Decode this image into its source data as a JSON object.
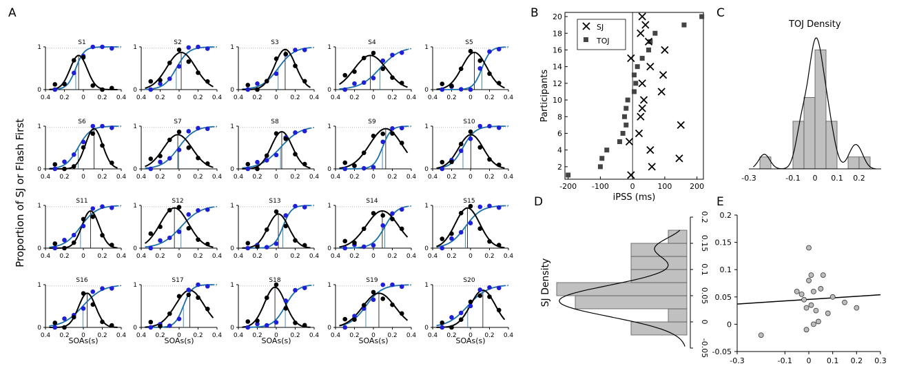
{
  "panels": {
    "A": "A",
    "B": "B",
    "C": "C",
    "D": "D",
    "E": "E"
  },
  "panel_a": {
    "ylabel": "Proportion of SJ or Flash First",
    "xlabel": "SOAs(s)",
    "xticks": [
      "0.4",
      "0.2",
      "0",
      "0.2",
      "0.4"
    ],
    "yticks": [
      "0",
      "0.5",
      "1"
    ],
    "subjects": [
      "S1",
      "S2",
      "S3",
      "S4",
      "S5",
      "S6",
      "S7",
      "S8",
      "S9",
      "S10",
      "S11",
      "S12",
      "S13",
      "S14",
      "S15",
      "S16",
      "S17",
      "S18",
      "S19",
      "S20"
    ]
  },
  "colors": {
    "sj": "#000000",
    "toj_points": "#1f1fd6",
    "toj_curve": "#1a6fa8",
    "bar_fill": "#c0c0c0"
  },
  "chart_data": [
    {
      "panel": "B",
      "type": "scatter",
      "xlabel": "iPSS (ms)",
      "ylabel": "Participants",
      "xlim": [
        -210,
        220
      ],
      "ylim": [
        0.5,
        20.5
      ],
      "xticks": [
        "-200",
        "-100",
        "0",
        "100",
        "200"
      ],
      "yticks": [
        "2",
        "4",
        "6",
        "8",
        "10",
        "12",
        "14",
        "16",
        "18",
        "20"
      ],
      "legend_position": "top-left",
      "series": [
        {
          "name": "SJ",
          "marker": "x",
          "x": [
            -5,
            60,
            145,
            55,
            -10,
            20,
            150,
            25,
            30,
            35,
            90,
            30,
            95,
            55,
            -5,
            100,
            50,
            25,
            40,
            30
          ],
          "y": [
            1,
            2,
            3,
            4,
            5,
            6,
            7,
            8,
            9,
            10,
            11,
            12,
            13,
            14,
            15,
            16,
            17,
            18,
            19,
            20
          ]
        },
        {
          "name": "TOJ",
          "marker": "square",
          "x": [
            -200,
            -100,
            -95,
            -80,
            -40,
            -30,
            -20,
            -25,
            -20,
            -15,
            5,
            10,
            5,
            15,
            30,
            50,
            55,
            70,
            160,
            215
          ],
          "y": [
            1,
            2,
            3,
            4,
            5,
            6,
            7,
            8,
            9,
            10,
            11,
            12,
            13,
            14,
            15,
            16,
            17,
            18,
            19,
            20
          ]
        }
      ]
    },
    {
      "panel": "C",
      "type": "bar",
      "title": "TOJ  Density",
      "xlim": [
        -0.3,
        0.3
      ],
      "xticks": [
        "-0.3",
        "-0.1",
        "0",
        "0.1",
        "0.2"
      ],
      "bin_edges": [
        -0.25,
        -0.2,
        -0.15,
        -0.1,
        -0.05,
        0.0,
        0.05,
        0.1,
        0.15,
        0.2,
        0.25
      ],
      "values": [
        1,
        0,
        0,
        4,
        6,
        10,
        4,
        0,
        1,
        1
      ]
    },
    {
      "panel": "D",
      "type": "bar",
      "orientation": "horizontal",
      "ylabel": "SJ Density",
      "ylim": [
        -0.05,
        0.2
      ],
      "yticks": [
        "-0.05",
        "0",
        "0.05",
        "0.1",
        "0.15",
        "0.2"
      ],
      "bin_edges": [
        -0.025,
        0.0,
        0.025,
        0.05,
        0.075,
        0.1,
        0.125,
        0.15,
        0.175
      ],
      "values": [
        3,
        1,
        6,
        7,
        3,
        3,
        3,
        1
      ]
    },
    {
      "panel": "E",
      "type": "scatter",
      "xlim": [
        -0.3,
        0.3
      ],
      "ylim": [
        -0.05,
        0.2
      ],
      "xticks": [
        "-0.3",
        "-0.1",
        "0",
        "0.1",
        "0.2",
        "0.3"
      ],
      "yticks": [
        "-0.05",
        "0",
        "0.05",
        "0.1",
        "0.15",
        "0.2"
      ],
      "x": [
        -0.2,
        -0.05,
        -0.03,
        -0.02,
        0.0,
        0.01,
        0.0,
        0.02,
        0.03,
        0.05,
        0.06,
        0.01,
        -0.01,
        0.04,
        0.08,
        0.1,
        0.15,
        0.2,
        -0.01,
        0.02
      ],
      "y": [
        -0.02,
        0.06,
        0.055,
        0.045,
        0.14,
        0.09,
        0.08,
        0.06,
        0.025,
        0.065,
        0.09,
        0.035,
        0.03,
        0.005,
        0.02,
        0.05,
        0.04,
        0.03,
        -0.01,
        0.0
      ],
      "fit_line": {
        "x": [
          -0.3,
          0.3
        ],
        "y": [
          0.037,
          0.054
        ]
      }
    }
  ]
}
